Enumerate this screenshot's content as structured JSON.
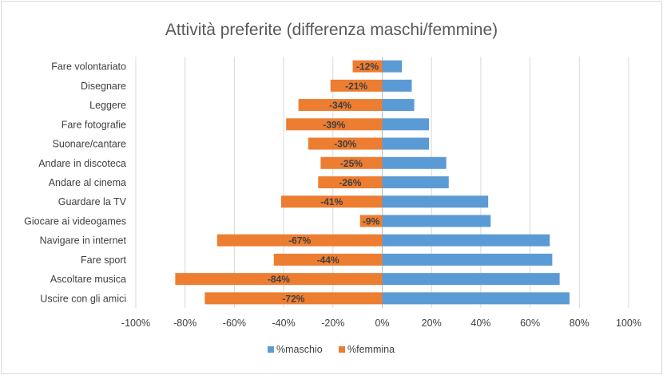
{
  "chart_data": {
    "type": "bar",
    "orientation": "horizontal",
    "title": "Attività preferite (differenza maschi/femmine)",
    "categories": [
      "Fare volontariato",
      "Disegnare",
      "Leggere",
      "Fare fotografie",
      "Suonare/cantare",
      "Andare in discoteca",
      "Andare al cinema",
      "Guardare la TV",
      "Giocare ai videogames",
      "Navigare in internet",
      "Fare sport",
      "Ascoltare musica",
      "Uscire con gli amici"
    ],
    "series": [
      {
        "name": "%maschio",
        "color": "#5b9bd5",
        "values": [
          8,
          12,
          13,
          19,
          19,
          26,
          27,
          43,
          44,
          68,
          69,
          72,
          76
        ]
      },
      {
        "name": "%femmina",
        "color": "#ed7d31",
        "values": [
          -12,
          -21,
          -34,
          -39,
          -30,
          -25,
          -26,
          -41,
          -9,
          -67,
          -44,
          -84,
          -72
        ],
        "data_labels": [
          "-12%",
          "-21%",
          "-34%",
          "-39%",
          "-30%",
          "-25%",
          "-26%",
          "-41%",
          "-9%",
          "-67%",
          "-44%",
          "-84%",
          "-72%"
        ]
      }
    ],
    "xlim": [
      -100,
      100
    ],
    "x_ticks": [
      -100,
      -80,
      -60,
      -40,
      -20,
      0,
      20,
      40,
      60,
      80,
      100
    ],
    "x_tick_labels": [
      "-100%",
      "-80%",
      "-60%",
      "-40%",
      "-20%",
      "0%",
      "20%",
      "40%",
      "60%",
      "80%",
      "100%"
    ],
    "grid": true,
    "legend_position": "bottom"
  }
}
